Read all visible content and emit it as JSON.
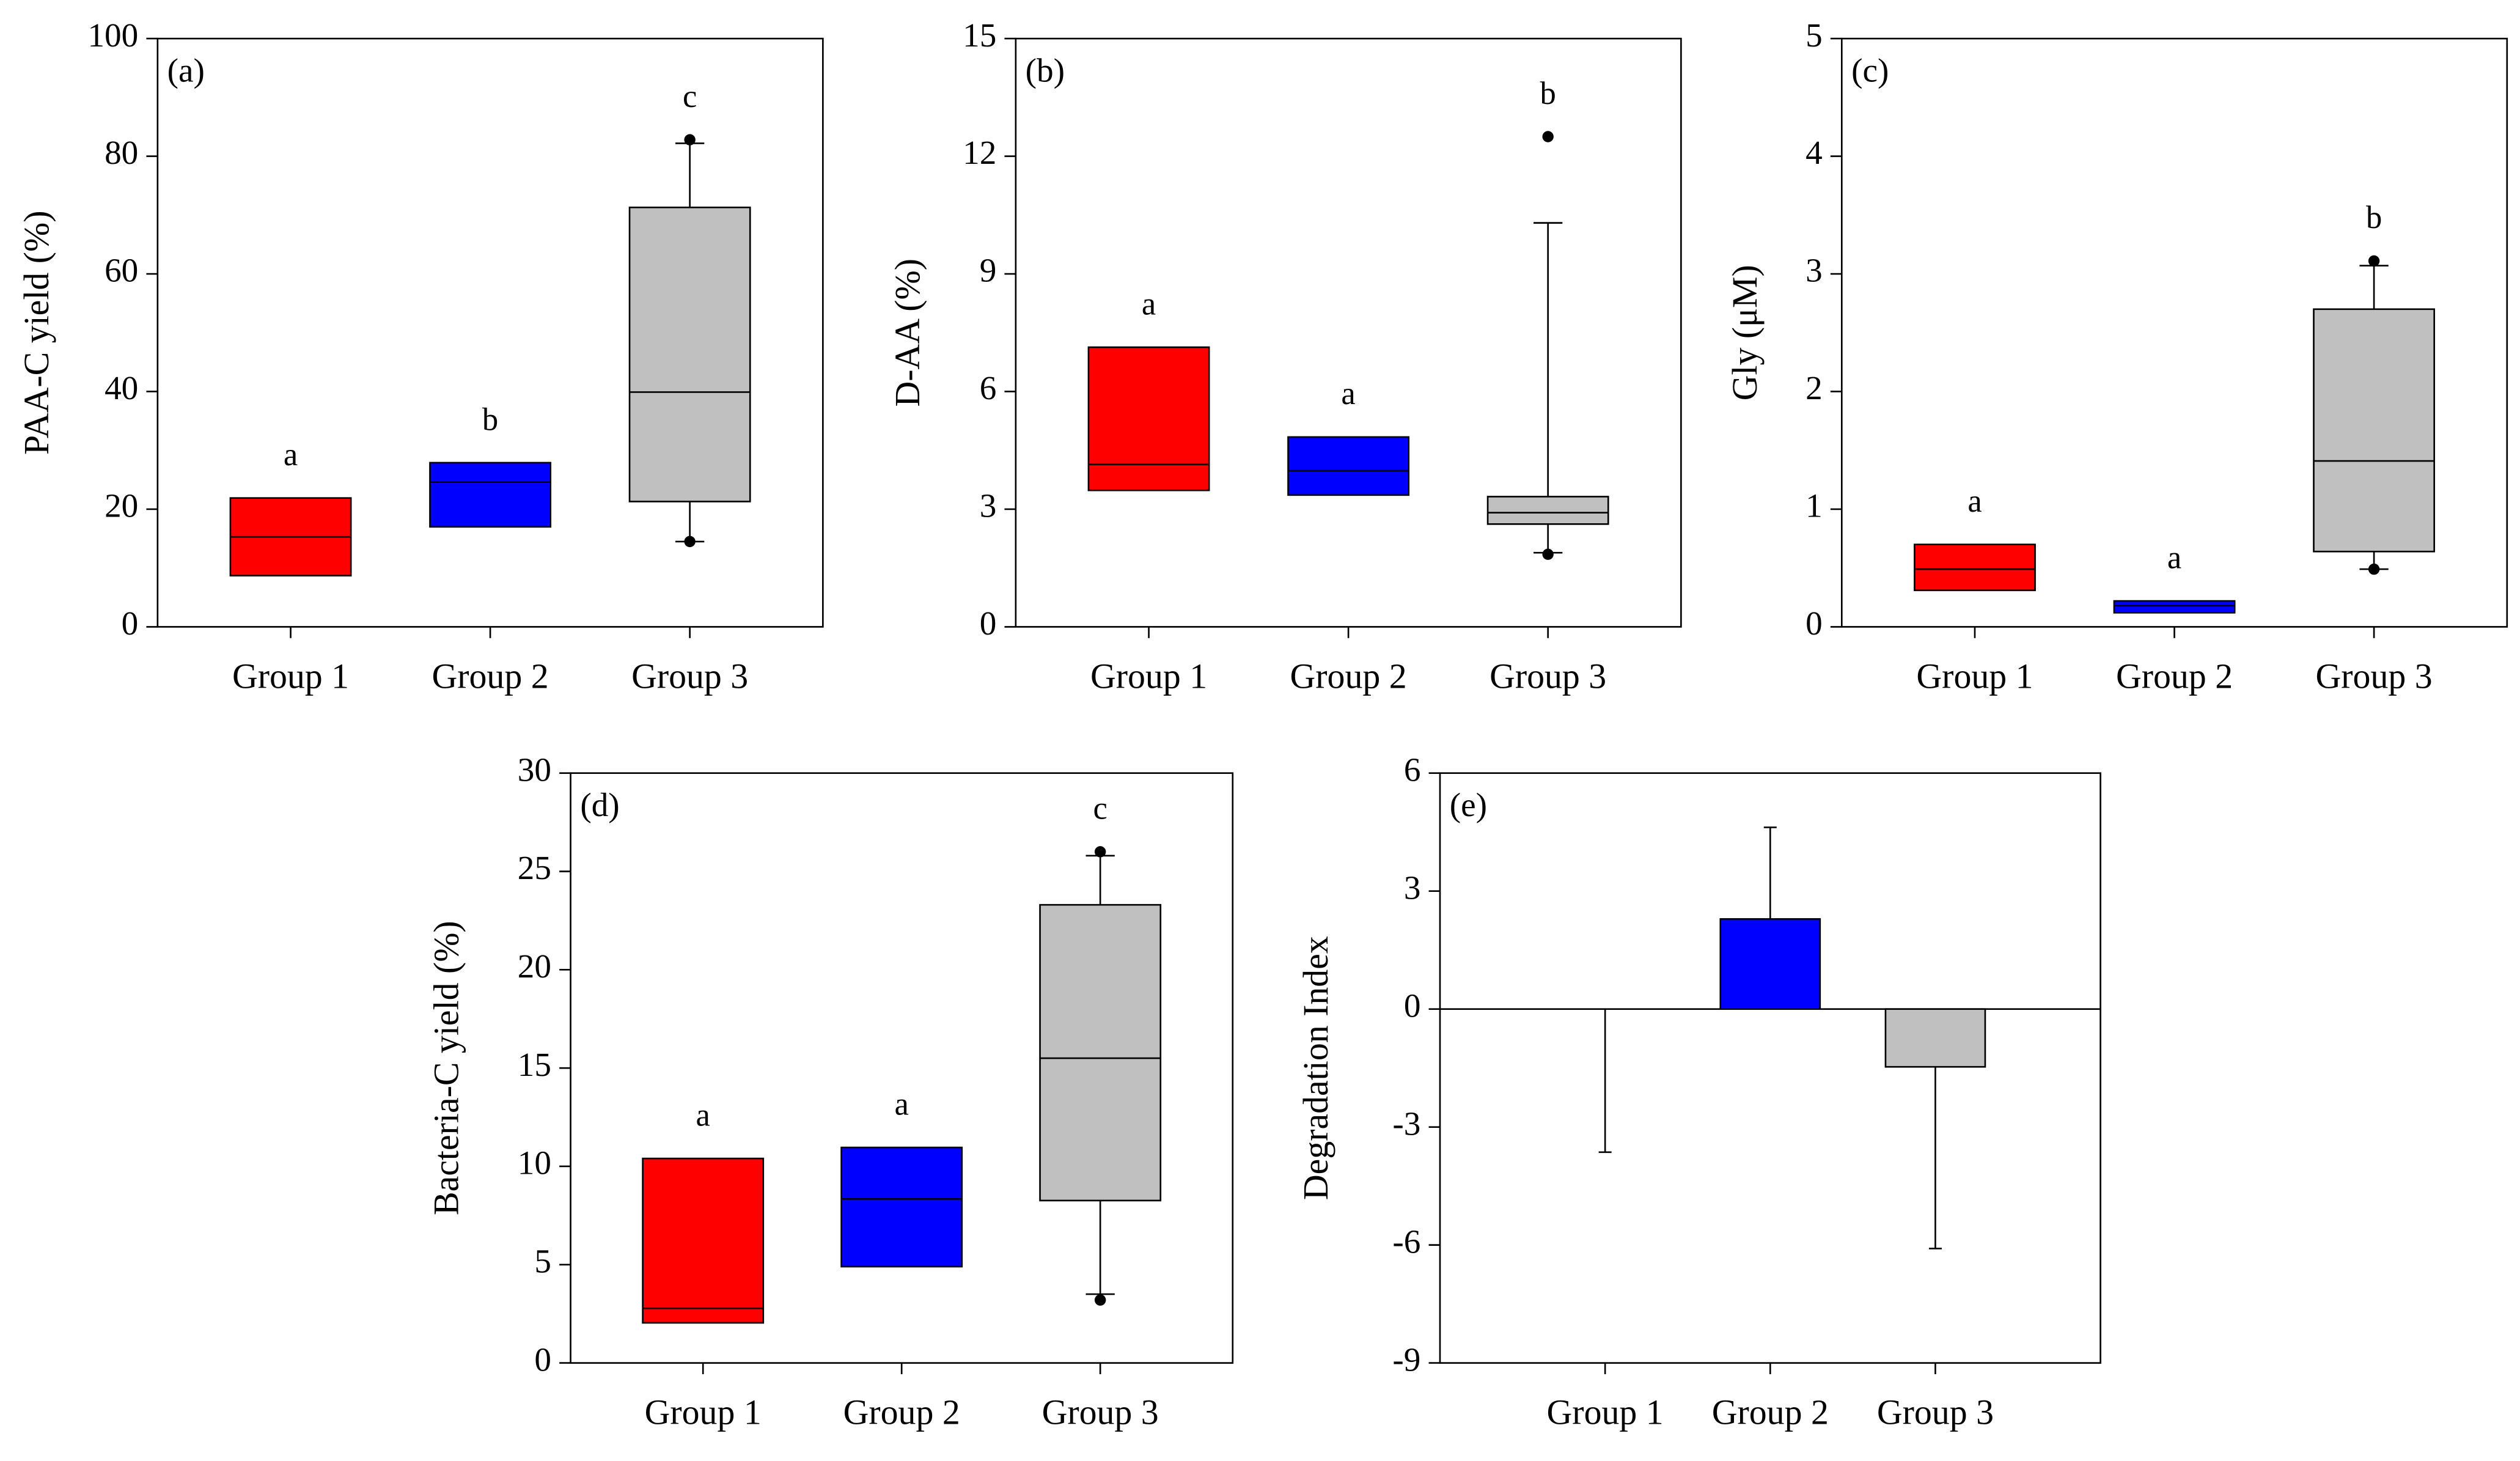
{
  "chart_data": [
    {
      "type": "box",
      "panel_label": "(a)",
      "ylabel": "PAA-C yield (%)",
      "ylim": [
        0,
        100
      ],
      "yticks": [
        0,
        20,
        40,
        60,
        80,
        100
      ],
      "categories": [
        "Group 1",
        "Group 2",
        "Group 3"
      ],
      "colors": [
        "#ff0000",
        "#0000ff",
        "#c0c0c0"
      ],
      "q1": [
        8.7,
        17,
        21.3
      ],
      "median": [
        15.3,
        24.6,
        39.9
      ],
      "q3": [
        21.9,
        27.9,
        71.3
      ],
      "whisker_low": [
        null,
        null,
        14.5
      ],
      "whisker_high": [
        null,
        null,
        82.2
      ],
      "outliers": [
        [],
        [],
        [
          82.8,
          14.5
        ]
      ],
      "letters": [
        "a",
        "b",
        "c"
      ]
    },
    {
      "type": "box",
      "panel_label": "(b)",
      "ylabel": "D-AA (%)",
      "ylim": [
        0,
        15
      ],
      "yticks": [
        0,
        3,
        6,
        9,
        12,
        15
      ],
      "categories": [
        "Group 1",
        "Group 2",
        "Group 3"
      ],
      "colors": [
        "#ff0000",
        "#0000ff",
        "#c0c0c0"
      ],
      "q1": [
        3.48,
        3.36,
        2.62
      ],
      "median": [
        4.14,
        3.98,
        2.91
      ],
      "q3": [
        7.13,
        4.84,
        3.32
      ],
      "whisker_low": [
        null,
        null,
        1.89
      ],
      "whisker_high": [
        null,
        null,
        10.3
      ],
      "outliers": [
        [],
        [],
        [
          12.5,
          1.85
        ]
      ],
      "letters": [
        "a",
        "a",
        "b"
      ]
    },
    {
      "type": "box",
      "panel_label": "(c)",
      "ylabel": "Gly (μM)",
      "ylim": [
        0,
        5
      ],
      "yticks": [
        0,
        1,
        2,
        3,
        4,
        5
      ],
      "categories": [
        "Group 1",
        "Group 2",
        "Group 3"
      ],
      "colors": [
        "#ff0000",
        "#0000ff",
        "#c0c0c0"
      ],
      "q1": [
        0.31,
        0.12,
        0.64
      ],
      "median": [
        0.49,
        0.18,
        1.41
      ],
      "q3": [
        0.7,
        0.22,
        2.7
      ],
      "whisker_low": [
        null,
        null,
        0.49
      ],
      "whisker_high": [
        null,
        null,
        3.07
      ],
      "outliers": [
        [],
        [],
        [
          3.11,
          0.49
        ]
      ],
      "letters": [
        "a",
        "a",
        "b"
      ]
    },
    {
      "type": "box",
      "panel_label": "(d)",
      "ylabel": "Bacteria-C yield (%)",
      "ylim": [
        0,
        30
      ],
      "yticks": [
        0,
        5,
        10,
        15,
        20,
        25,
        30
      ],
      "categories": [
        "Group 1",
        "Group 2",
        "Group 3"
      ],
      "colors": [
        "#ff0000",
        "#0000ff",
        "#c0c0c0"
      ],
      "q1": [
        2.04,
        4.9,
        8.26
      ],
      "median": [
        2.78,
        8.34,
        15.5
      ],
      "q3": [
        10.4,
        10.96,
        23.3
      ],
      "whisker_low": [
        null,
        null,
        3.5
      ],
      "whisker_high": [
        null,
        null,
        25.8
      ],
      "outliers": [
        [],
        [],
        [
          26.0,
          3.2
        ]
      ],
      "letters": [
        "a",
        "a",
        "c"
      ]
    },
    {
      "type": "bar",
      "panel_label": "(e)",
      "ylabel": "Degradation Index",
      "ylim": [
        -9,
        6
      ],
      "yticks": [
        -9,
        -6,
        -3,
        0,
        3,
        6
      ],
      "categories": [
        "Group 1",
        "Group 2",
        "Group 3"
      ],
      "colors": [
        "#ff0000",
        "#0000ff",
        "#c0c0c0"
      ],
      "values": [
        0,
        2.29,
        -1.47
      ],
      "errors": [
        3.64,
        2.33,
        4.62
      ]
    }
  ]
}
